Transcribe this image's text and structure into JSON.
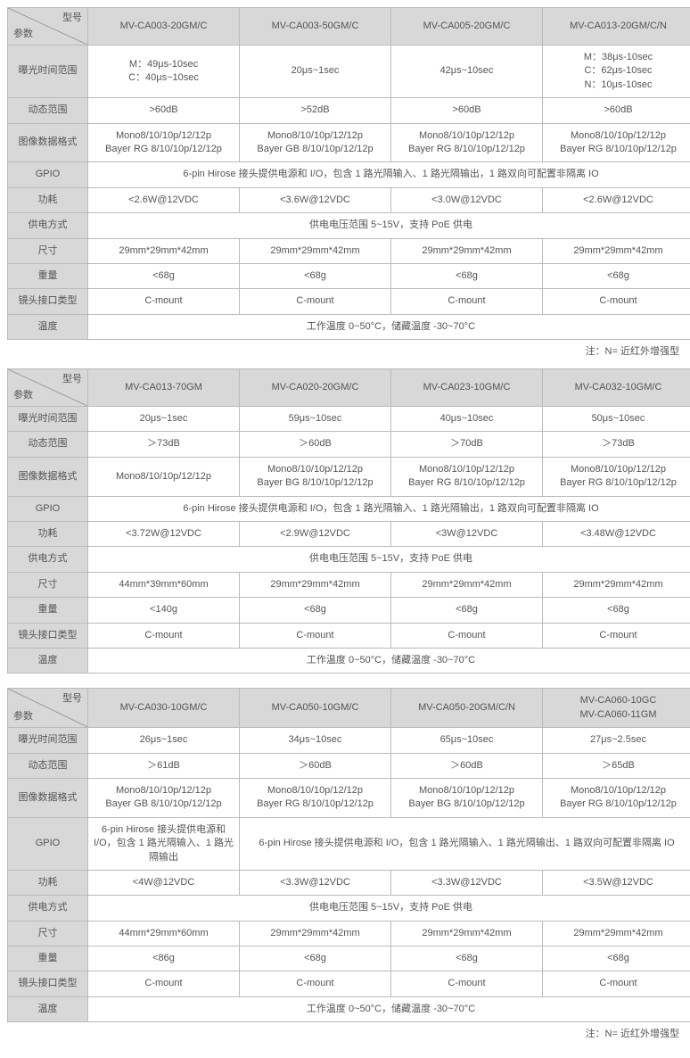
{
  "diag_labels": {
    "top": "型号",
    "bottom": "参数"
  },
  "param_labels": [
    "曝光时间范围",
    "动态范围",
    "图像数据格式",
    "GPIO",
    "功耗",
    "供电方式",
    "尺寸",
    "重量",
    "镜头接口类型",
    "温度"
  ],
  "footnote": "注：N= 近红外增强型",
  "colors": {
    "header_bg": "#d8d8d8",
    "border": "#bbbbbb",
    "text": "#555555",
    "bg": "#ffffff"
  },
  "tables": [
    {
      "models": [
        "MV-CA003-20GM/C",
        "MV-CA003-50GM/C",
        "MV-CA005-20GM/C",
        "MV-CA013-20GM/C/N"
      ],
      "rows": [
        [
          "M：49μs-10sec\nC：40μs~10sec",
          "20μs~1sec",
          "42μs~10sec",
          "M：38μs-10sec\nC：62μs-10sec\nN：10μs-10sec"
        ],
        [
          ">60dB",
          ">52dB",
          ">60dB",
          ">60dB"
        ],
        [
          "Mono8/10/10p/12/12p\nBayer RG 8/10/10p/12/12p",
          "Mono8/10/10p/12/12p\nBayer GB 8/10/10p/12/12p",
          "Mono8/10/10p/12/12p\nBayer RG 8/10/10p/12/12p",
          "Mono8/10/10p/12/12p\nBayer RG 8/10/10p/12/12p"
        ],
        [
          {
            "span": 4,
            "text": "6-pin Hirose 接头提供电源和 I/O，包含 1 路光隔输入、1 路光隔输出，1 路双向可配置非隔离 IO"
          }
        ],
        [
          "<2.6W@12VDC",
          "<3.6W@12VDC",
          "<3.0W@12VDC",
          "<2.6W@12VDC"
        ],
        [
          {
            "span": 4,
            "text": "供电电压范围 5~15V，支持 PoE 供电"
          }
        ],
        [
          "29mm*29mm*42mm",
          "29mm*29mm*42mm",
          "29mm*29mm*42mm",
          "29mm*29mm*42mm"
        ],
        [
          "<68g",
          "<68g",
          "<68g",
          "<68g"
        ],
        [
          "C-mount",
          "C-mount",
          "C-mount",
          "C-mount"
        ],
        [
          {
            "span": 4,
            "text": "工作温度 0~50°C，储藏温度 -30~70°C"
          }
        ]
      ],
      "show_footnote": true
    },
    {
      "models": [
        "MV-CA013-70GM",
        "MV-CA020-20GM/C",
        "MV-CA023-10GM/C",
        "MV-CA032-10GM/C"
      ],
      "rows": [
        [
          "20μs~1sec",
          "59μs~10sec",
          "40μs~10sec",
          "50μs~10sec"
        ],
        [
          "＞73dB",
          "＞60dB",
          "＞70dB",
          "＞73dB"
        ],
        [
          "Mono8/10/10p/12/12p",
          "Mono8/10/10p/12/12p\nBayer BG 8/10/10p/12/12p",
          "Mono8/10/10p/12/12p\nBayer RG 8/10/10p/12/12p",
          "Mono8/10/10p/12/12p\nBayer RG 8/10/10p/12/12p"
        ],
        [
          {
            "span": 4,
            "text": "6-pin Hirose 接头提供电源和 I/O，包含 1 路光隔输入、1 路光隔输出，1 路双向可配置非隔离 IO"
          }
        ],
        [
          "<3.72W@12VDC",
          "<2.9W@12VDC",
          "<3W@12VDC",
          "<3.48W@12VDC"
        ],
        [
          {
            "span": 4,
            "text": "供电电压范围 5~15V，支持 PoE 供电"
          }
        ],
        [
          "44mm*39mm*60mm",
          "29mm*29mm*42mm",
          "29mm*29mm*42mm",
          "29mm*29mm*42mm"
        ],
        [
          "<140g",
          "<68g",
          "<68g",
          "<68g"
        ],
        [
          "C-mount",
          "C-mount",
          "C-mount",
          "C-mount"
        ],
        [
          {
            "span": 4,
            "text": "工作温度 0~50°C，储藏温度 -30~70°C"
          }
        ]
      ],
      "show_footnote": false
    },
    {
      "models": [
        "MV-CA030-10GM/C",
        "MV-CA050-10GM/C",
        "MV-CA050-20GM/C/N",
        "MV-CA060-10GC\nMV-CA060-11GM"
      ],
      "rows": [
        [
          "26μs~1sec",
          "34μs~10sec",
          "65μs~10sec",
          "27μs~2.5sec"
        ],
        [
          "＞61dB",
          "＞60dB",
          "＞60dB",
          "＞65dB"
        ],
        [
          "Mono8/10/10p/12/12p\nBayer GB 8/10/10p/12/12p",
          "Mono8/10/10p/12/12p\nBayer RG 8/10/10p/12/12p",
          "Mono8/10/10p/12/12p\nBayer BG 8/10/10p/12/12p",
          "Mono8/10/10p/12/12p\nBayer RG 8/10/10p/12/12p"
        ],
        [
          "6-pin Hirose 接头提供电源和 I/O，包含 1 路光隔输入、1 路光隔输出",
          {
            "span": 3,
            "text": "6-pin Hirose 接头提供电源和 I/O，包含 1 路光隔输入、1 路光隔输出、1 路双向可配置非隔离 IO"
          }
        ],
        [
          "<4W@12VDC",
          "<3.3W@12VDC",
          "<3.3W@12VDC",
          "<3.5W@12VDC"
        ],
        [
          {
            "span": 4,
            "text": "供电电压范围 5~15V，支持 PoE 供电"
          }
        ],
        [
          "44mm*29mm*60mm",
          "29mm*29mm*42mm",
          "29mm*29mm*42mm",
          "29mm*29mm*42mm"
        ],
        [
          "<86g",
          "<68g",
          "<68g",
          "<68g"
        ],
        [
          "C-mount",
          "C-mount",
          "C-mount",
          "C-mount"
        ],
        [
          {
            "span": 4,
            "text": "工作温度 0~50°C，储藏温度 -30~70°C"
          }
        ]
      ],
      "show_footnote": true
    }
  ]
}
